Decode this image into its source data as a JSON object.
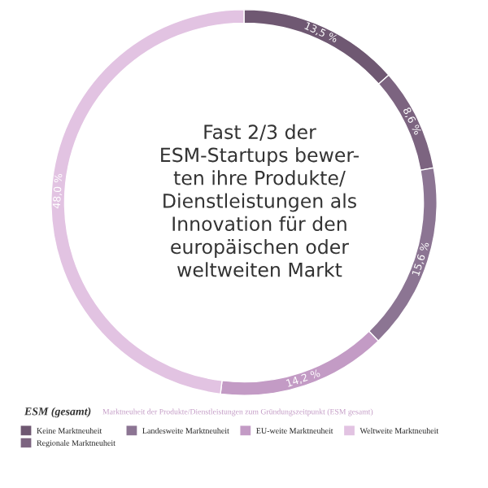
{
  "chart_data": {
    "type": "donut",
    "title": "ESM (gesamt)",
    "subtitle": "Marktneuheit der Produkte/Dienstleistungen zum Gründungszeitpunkt (ESM gesamt)",
    "categories": [
      "Keine Marktneuheit",
      "Regionale Marktneuheit",
      "Landesweite Marktneuheit",
      "EU-weite Marktneuheit",
      "Weltweite Marktneuheit"
    ],
    "values": [
      13.5,
      8.6,
      15.6,
      14.2,
      48.0
    ],
    "value_labels": [
      "13,5 %",
      "8,6 %",
      "15,6 %",
      "14,2 %",
      "48,0 %"
    ],
    "colors": [
      "#6f5872",
      "#7c6480",
      "#8c7593",
      "#c39bc5",
      "#e2c3e2"
    ],
    "legend": "bottom",
    "annotations": [
      "Fast 2/3 der\nESM-Startups bewer-\nten ihre Produkte/\nDienstleistungen als\nInnovation für den\neuropäischen oder\nweltweiten Markt"
    ]
  }
}
